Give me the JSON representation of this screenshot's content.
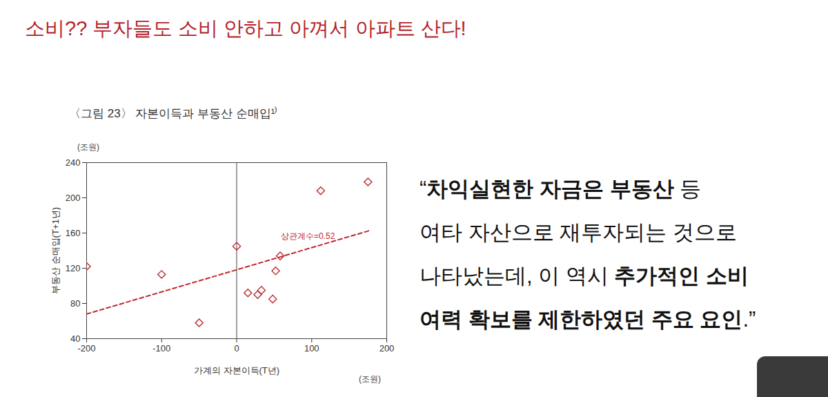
{
  "slide_title": "소비?? 부자들도 소비 안하고 아껴서 아파트 산다!",
  "chart_data": {
    "type": "scatter",
    "title": "〈그림 23〉 자본이득과 부동산 순매입¹⁾",
    "x_label": "가계의 자본이득(T년)",
    "y_label": "부동산 순매입(T+1년)",
    "x_unit": "(조원)",
    "y_unit": "(조원)",
    "x": [
      -200,
      -100,
      -50,
      0,
      15,
      28,
      33,
      48,
      52,
      58,
      112,
      175
    ],
    "values": [
      122,
      113,
      58,
      145,
      92,
      90,
      95,
      85,
      117,
      134,
      208,
      218
    ],
    "color": "#c0282d",
    "marker": "diamond",
    "xlim": [
      -200,
      200
    ],
    "xticks": [
      -200,
      -100,
      0,
      100,
      200
    ],
    "ylim": [
      40,
      240
    ],
    "yticks": [
      40,
      80,
      120,
      160,
      200,
      240
    ],
    "grid": false,
    "vline_x": 0,
    "trend_line": {
      "x": [
        -200,
        178
      ],
      "values": [
        68,
        163
      ],
      "color": "#c0282d",
      "line_style": "dashed"
    },
    "annotation": "상관계수=0.52"
  },
  "quote": {
    "lines": [
      [
        {
          "text": "“"
        },
        {
          "text": "차익실현한 자금은 부동산",
          "bold": true
        },
        {
          "text": " 등"
        }
      ],
      [
        {
          "text": "여타 자산으로 재투자되는 것으로"
        }
      ],
      [
        {
          "text": "나타났는데, 이 역시 "
        },
        {
          "text": "추가적인 소비",
          "bold": true
        }
      ],
      [
        {
          "text": "여력 확보를 제한하였던 주요 요인",
          "bold": true
        },
        {
          "text": ".”"
        }
      ]
    ]
  }
}
